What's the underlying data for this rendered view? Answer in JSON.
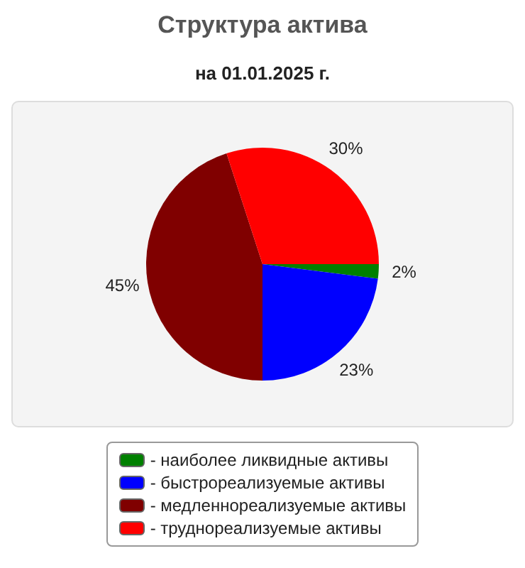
{
  "chart_data": {
    "type": "pie",
    "title": "Структура актива",
    "subtitle": "на 01.01.2025 г.",
    "categories": [
      "- наиболее ликвидные активы",
      "- быстрореализуемые активы",
      "- медленнореализуемые активы",
      "- труднореализуемые активы"
    ],
    "values": [
      2,
      23,
      45,
      30
    ],
    "colors": [
      "#008000",
      "#0000ff",
      "#800000",
      "#ff0000"
    ],
    "value_labels": [
      "2%",
      "23%",
      "45%",
      "30%"
    ],
    "legend": "bottom"
  }
}
